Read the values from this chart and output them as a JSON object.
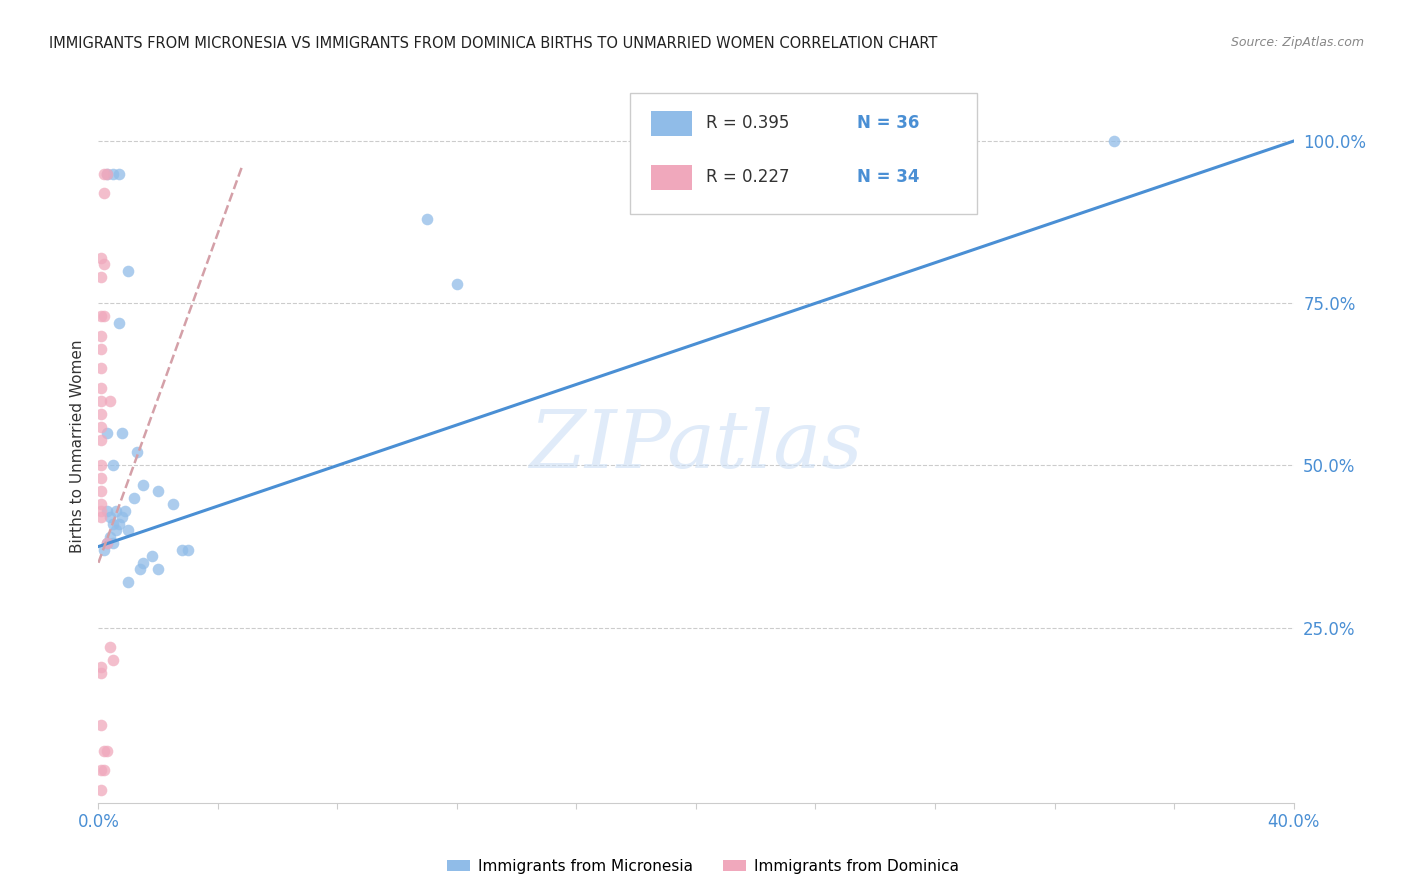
{
  "title": "IMMIGRANTS FROM MICRONESIA VS IMMIGRANTS FROM DOMINICA BIRTHS TO UNMARRIED WOMEN CORRELATION CHART",
  "source": "Source: ZipAtlas.com",
  "ylabel": "Births to Unmarried Women",
  "watermark": "ZIPatlas",
  "blue_scatter": [
    [
      0.003,
      0.95
    ],
    [
      0.005,
      0.95
    ],
    [
      0.007,
      0.95
    ],
    [
      0.01,
      0.8
    ],
    [
      0.007,
      0.72
    ],
    [
      0.003,
      0.55
    ],
    [
      0.008,
      0.55
    ],
    [
      0.013,
      0.52
    ],
    [
      0.005,
      0.5
    ],
    [
      0.12,
      0.78
    ],
    [
      0.015,
      0.47
    ],
    [
      0.012,
      0.45
    ],
    [
      0.02,
      0.46
    ],
    [
      0.025,
      0.44
    ],
    [
      0.003,
      0.43
    ],
    [
      0.006,
      0.43
    ],
    [
      0.009,
      0.43
    ],
    [
      0.004,
      0.42
    ],
    [
      0.008,
      0.42
    ],
    [
      0.005,
      0.41
    ],
    [
      0.007,
      0.41
    ],
    [
      0.006,
      0.4
    ],
    [
      0.01,
      0.4
    ],
    [
      0.004,
      0.39
    ],
    [
      0.003,
      0.38
    ],
    [
      0.005,
      0.38
    ],
    [
      0.002,
      0.37
    ],
    [
      0.028,
      0.37
    ],
    [
      0.03,
      0.37
    ],
    [
      0.018,
      0.36
    ],
    [
      0.015,
      0.35
    ],
    [
      0.014,
      0.34
    ],
    [
      0.02,
      0.34
    ],
    [
      0.01,
      0.32
    ],
    [
      0.11,
      0.88
    ],
    [
      0.34,
      1.0
    ]
  ],
  "pink_scatter": [
    [
      0.002,
      0.95
    ],
    [
      0.003,
      0.95
    ],
    [
      0.002,
      0.92
    ],
    [
      0.001,
      0.82
    ],
    [
      0.002,
      0.81
    ],
    [
      0.001,
      0.79
    ],
    [
      0.001,
      0.73
    ],
    [
      0.002,
      0.73
    ],
    [
      0.001,
      0.7
    ],
    [
      0.001,
      0.68
    ],
    [
      0.001,
      0.65
    ],
    [
      0.001,
      0.62
    ],
    [
      0.001,
      0.6
    ],
    [
      0.001,
      0.58
    ],
    [
      0.001,
      0.56
    ],
    [
      0.001,
      0.54
    ],
    [
      0.001,
      0.5
    ],
    [
      0.001,
      0.48
    ],
    [
      0.001,
      0.46
    ],
    [
      0.001,
      0.44
    ],
    [
      0.001,
      0.43
    ],
    [
      0.001,
      0.42
    ],
    [
      0.004,
      0.6
    ],
    [
      0.003,
      0.38
    ],
    [
      0.004,
      0.22
    ],
    [
      0.005,
      0.2
    ],
    [
      0.001,
      0.19
    ],
    [
      0.001,
      0.18
    ],
    [
      0.001,
      0.1
    ],
    [
      0.002,
      0.06
    ],
    [
      0.003,
      0.06
    ],
    [
      0.001,
      0.03
    ],
    [
      0.002,
      0.03
    ],
    [
      0.001,
      0.0
    ]
  ],
  "xlim": [
    0.0,
    0.4
  ],
  "ylim": [
    -0.02,
    1.08
  ],
  "blue_line_x": [
    0.0,
    0.4
  ],
  "blue_line_y": [
    0.375,
    1.0
  ],
  "pink_line_x": [
    0.0,
    0.048
  ],
  "pink_line_y": [
    0.35,
    0.96
  ],
  "background_color": "#ffffff",
  "scatter_size": 70,
  "blue_color": "#90bce8",
  "pink_color": "#f0a8bc",
  "blue_line_color": "#4a8fd4",
  "pink_line_color": "#d4a0a8",
  "grid_color": "#cccccc",
  "tick_color": "#4a8fd4",
  "title_color": "#222222",
  "source_color": "#888888",
  "ylabel_color": "#333333",
  "legend_r1": "R = 0.395",
  "legend_n1": "N = 36",
  "legend_r2": "R = 0.227",
  "legend_n2": "N = 34",
  "legend_label1": "Immigrants from Micronesia",
  "legend_label2": "Immigrants from Dominica"
}
